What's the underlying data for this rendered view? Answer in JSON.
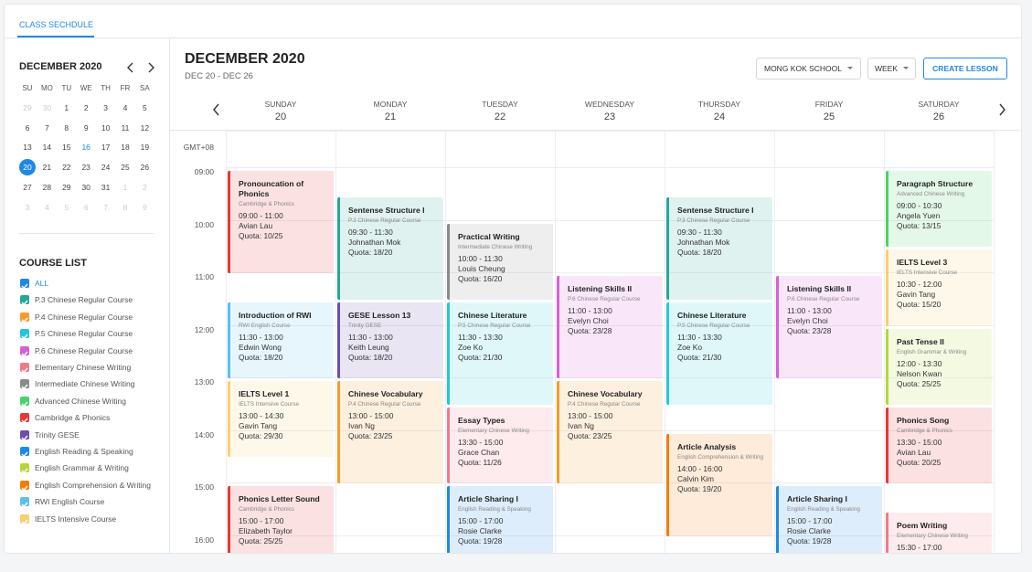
{
  "tab": "CLASS SECHDULE",
  "mini_calendar": {
    "title": "DECEMBER 2020",
    "weekdays": [
      "SU",
      "MO",
      "TU",
      "WE",
      "TH",
      "FR",
      "SA"
    ],
    "weeks": [
      [
        29,
        30,
        1,
        2,
        3,
        4,
        5
      ],
      [
        6,
        7,
        8,
        9,
        10,
        11,
        12
      ],
      [
        13,
        14,
        15,
        16,
        17,
        18,
        19
      ],
      [
        20,
        21,
        22,
        23,
        24,
        25,
        26
      ],
      [
        27,
        28,
        29,
        30,
        31,
        1,
        2
      ],
      [
        3,
        4,
        5,
        6,
        7,
        8,
        9
      ]
    ],
    "today": 16,
    "selected": 20
  },
  "course_list": {
    "title": "COURSE LIST",
    "items": [
      {
        "name": "ALL",
        "color": "#1e88e5"
      },
      {
        "name": "P.3 Chinese Regular Course",
        "color": "#26a69a"
      },
      {
        "name": "P.4 Chinese Regular Course",
        "color": "#f39c2b"
      },
      {
        "name": "P.5 Chinese Regular Course",
        "color": "#26c6da"
      },
      {
        "name": "P.6 Chinese Regular Course",
        "color": "#d65fd6"
      },
      {
        "name": "Elementary Chinese Writing",
        "color": "#ef7a8a"
      },
      {
        "name": "Intermediate Chinese Writing",
        "color": "#8a8a8a"
      },
      {
        "name": "Advanced Chinese Writing",
        "color": "#4cd06a"
      },
      {
        "name": "Cambridge & Phonics",
        "color": "#e53935"
      },
      {
        "name": "Trinity GESE",
        "color": "#6b4fa8"
      },
      {
        "name": "English Reading & Speaking",
        "color": "#1e88e5"
      },
      {
        "name": "English Grammar & Writing",
        "color": "#b5d63c"
      },
      {
        "name": "English Comprehension & Writing",
        "color": "#f57c00"
      },
      {
        "name": "RWI English Course",
        "color": "#5bc0eb"
      },
      {
        "name": "IELTS Intensive Course",
        "color": "#f7d070"
      }
    ]
  },
  "header": {
    "title": "DECEMBER 2020",
    "range": "DEC 20 - DEC 26",
    "school": "MONG KOK SCHOOL",
    "view": "WEEK",
    "create": "CREATE LESSON"
  },
  "timezone": "GMT+08",
  "hours": [
    "09:00",
    "10:00",
    "11:00",
    "12:00",
    "13:00",
    "14:00",
    "15:00",
    "16:00"
  ],
  "days": [
    {
      "name": "SUNDAY",
      "date": 20,
      "events": [
        {
          "title": "Pronouncation of Phonics",
          "course": "Cambridge & Phonics",
          "time": "09:00 - 11:00",
          "teacher": "Avian Lau",
          "quota": "Quota: 10/25"
        },
        {
          "title": "Introduction of RWI",
          "course": "RWI English Course",
          "time": "11:30 - 13:00",
          "teacher": "Edwin Wong",
          "quota": "Quota: 18/20"
        },
        {
          "title": "IELTS Level 1",
          "course": "IELTS Intensive Course",
          "time": "13:00 - 14:30",
          "teacher": "Gavin Tang",
          "quota": "Quota: 29/30"
        },
        {
          "title": "Phonics Letter Sound",
          "course": "Cambridge & Phonics",
          "time": "15:00 - 17:00",
          "teacher": "Elizabeth Taylor",
          "quota": "Quota: 25/25"
        }
      ]
    },
    {
      "name": "MONDAY",
      "date": 21,
      "events": [
        {
          "title": "Sentense Structure I",
          "course": "P.3 Chinese Regular Course",
          "time": "09:30 - 11:30",
          "teacher": "Johnathan Mok",
          "quota": "Quota: 18/20"
        },
        {
          "title": "GESE Lesson 13",
          "course": "Trinity GESE",
          "time": "11:30 - 13:00",
          "teacher": "Keith Leung",
          "quota": "Quota: 18/20"
        },
        {
          "title": "Chinese Vocabulary",
          "course": "P.4 Chinese Regular Course",
          "time": "13:00 - 15:00",
          "teacher": "Ivan Ng",
          "quota": "Quota: 23/25"
        }
      ]
    },
    {
      "name": "TUESDAY",
      "date": 22,
      "events": [
        {
          "title": "Practical Writing",
          "course": "Intermediate Chinese Writing",
          "time": "10:00 - 11:30",
          "teacher": "Louis Cheung",
          "quota": "Quota: 16/20"
        },
        {
          "title": "Chinese Literature",
          "course": "P.5 Chinese Regular Course",
          "time": "11:30 - 13:30",
          "teacher": "Zoe Ko",
          "quota": "Quota: 21/30"
        },
        {
          "title": "Essay Types",
          "course": "Elementary Chinese Writing",
          "time": "13:30 - 15:00",
          "teacher": "Grace Chan",
          "quota": "Quota: 11/26"
        },
        {
          "title": "Article Sharing I",
          "course": "English Reading & Speaking",
          "time": "15:00 - 17:00",
          "teacher": "Rosie Clarke",
          "quota": "Quota: 19/28"
        }
      ]
    },
    {
      "name": "WEDNESDAY",
      "date": 23,
      "events": [
        {
          "title": "Listening Skills II",
          "course": "P.6 Chinese Regular Course",
          "time": "11:00 - 13:00",
          "teacher": "Evelyn Choi",
          "quota": "Quota: 23/28"
        },
        {
          "title": "Chinese Vocabulary",
          "course": "P.4 Chinese Regular Course",
          "time": "13:00 - 15:00",
          "teacher": "Ivan Ng",
          "quota": "Quota: 23/25"
        }
      ]
    },
    {
      "name": "THURSDAY",
      "date": 24,
      "events": [
        {
          "title": "Sentense Structure I",
          "course": "P.3 Chinese Regular Course",
          "time": "09:30 - 11:30",
          "teacher": "Johnathan Mok",
          "quota": "Quota: 18/20"
        },
        {
          "title": "Chinese Literature",
          "course": "P.5 Chinese Regular Course",
          "time": "11:30 - 13:30",
          "teacher": "Zoe Ko",
          "quota": "Quota: 21/30"
        },
        {
          "title": "Article Analysis",
          "course": "English Comprehension & Writing",
          "time": "14:00 - 16:00",
          "teacher": "Calvin Kim",
          "quota": "Quota: 19/20"
        }
      ]
    },
    {
      "name": "FRIDAY",
      "date": 25,
      "events": [
        {
          "title": "Listening Skills II",
          "course": "P.6 Chinese Regular Course",
          "time": "11:00 - 13:00",
          "teacher": "Evelyn Choi",
          "quota": "Quota: 23/28"
        },
        {
          "title": "Article Sharing I",
          "course": "English Reading & Speaking",
          "time": "15:00 - 17:00",
          "teacher": "Rosie Clarke",
          "quota": "Quota: 19/28"
        }
      ]
    },
    {
      "name": "SATURDAY",
      "date": 26,
      "events": [
        {
          "title": "Paragraph Structure",
          "course": "Advanced Chinese Writing",
          "time": "09:00 - 10:30",
          "teacher": "Angela Yuen",
          "quota": "Quota: 13/15"
        },
        {
          "title": "IELTS Level 3",
          "course": "IELTS Intensive Course",
          "time": "10:30 - 12:00",
          "teacher": "Gavin Tang",
          "quota": "Quota: 15/20"
        },
        {
          "title": "Past Tense II",
          "course": "English Grammar & Writing",
          "time": "12:00 - 13:30",
          "teacher": "Nelson Kwan",
          "quota": "Quota: 25/25"
        },
        {
          "title": "Phonics Song",
          "course": "Cambridge & Phonics",
          "time": "13:30 - 15:00",
          "teacher": "Avian Lau",
          "quota": "Quota: 20/25"
        },
        {
          "title": "Poem Writing",
          "course": "Elementary Chinese Writing",
          "time": "15:30 - 17:00"
        }
      ]
    }
  ]
}
